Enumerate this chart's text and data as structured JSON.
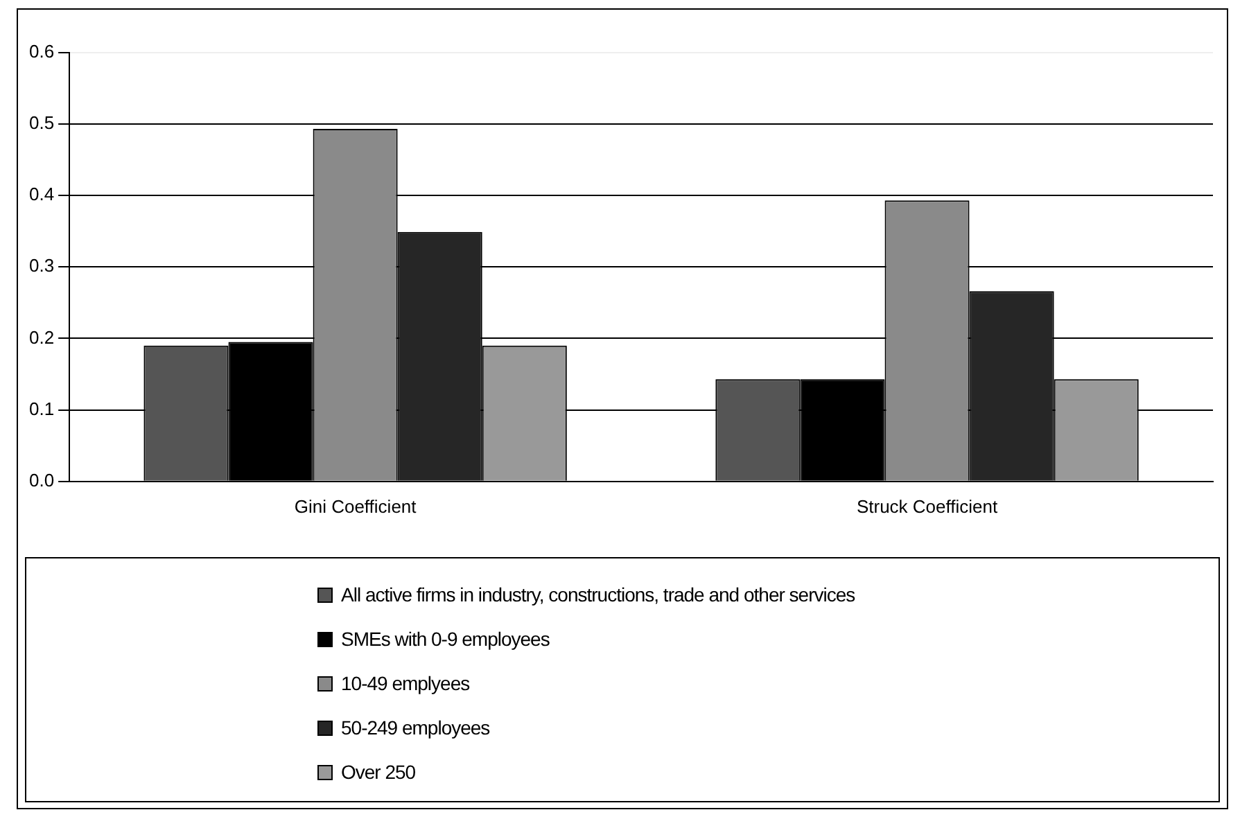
{
  "chart_data": {
    "type": "bar",
    "categories": [
      "Gini Coefficient",
      "Struck Coefficient"
    ],
    "series": [
      {
        "name": "All active firms in industry, constructions, trade and other services",
        "color": "#555555",
        "values": [
          0.19,
          0.143
        ]
      },
      {
        "name": "SMEs with 0-9 employees",
        "color": "#000000",
        "values": [
          0.195,
          0.143
        ]
      },
      {
        "name": "10-49 emplyees",
        "color": "#8a8a8a",
        "values": [
          0.493,
          0.393
        ]
      },
      {
        "name": "50-249 employees",
        "color": "#262626",
        "values": [
          0.349,
          0.266
        ]
      },
      {
        "name": "Over 250",
        "color": "#999999",
        "values": [
          0.19,
          0.143
        ]
      }
    ],
    "ylim": [
      0,
      0.6
    ],
    "yticks": [
      {
        "value": 0,
        "label": "0.0"
      },
      {
        "value": 0.1,
        "label": "0.1"
      },
      {
        "value": 0.2,
        "label": "0.2"
      },
      {
        "value": 0.3,
        "label": "0.3"
      },
      {
        "value": 0.4,
        "label": "0.4"
      },
      {
        "value": 0.5,
        "label": "0.5"
      },
      {
        "value": 0.6,
        "label": "0.6"
      }
    ],
    "grid": "y",
    "legend": "bottom"
  }
}
